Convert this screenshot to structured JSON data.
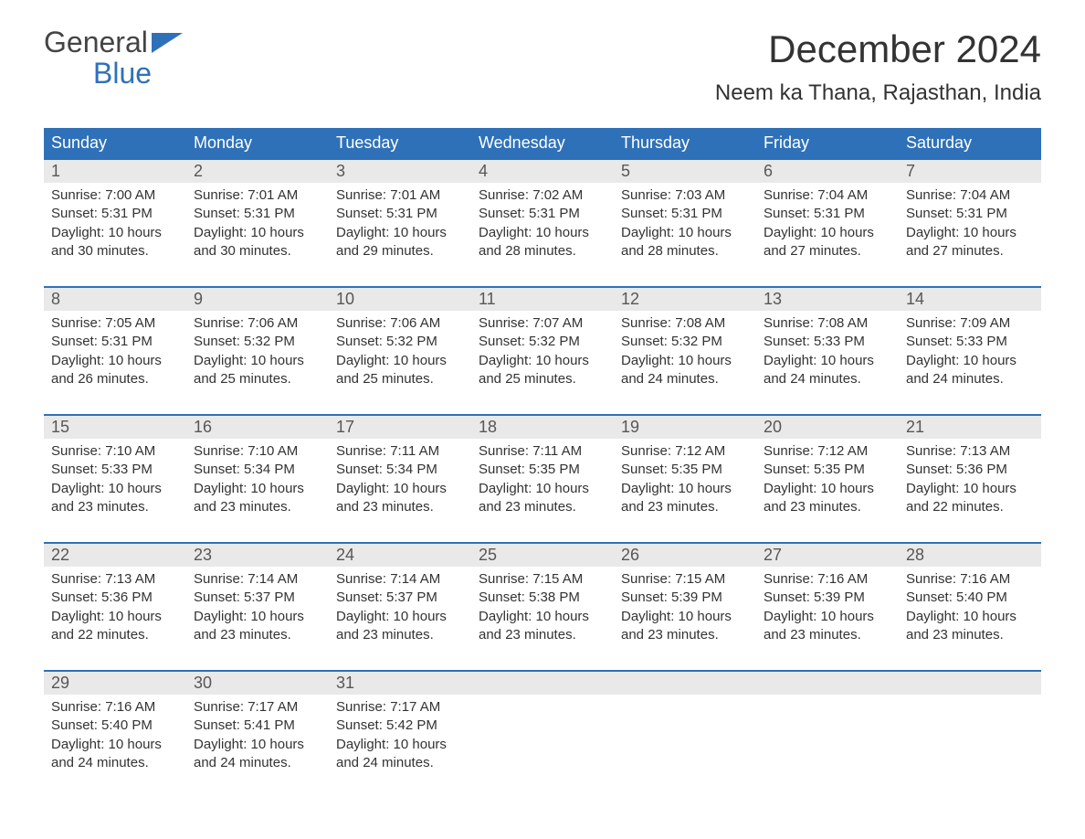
{
  "logo": {
    "top": "General",
    "bottom": "Blue"
  },
  "colors": {
    "brand_blue": "#2f71b8",
    "header_text": "#ffffff",
    "daynum_bg": "#e9e9e9",
    "daynum_text": "#575757",
    "body_text": "#333333",
    "page_bg": "#ffffff"
  },
  "typography": {
    "month_title_pt": 42,
    "location_pt": 24,
    "day_header_pt": 18,
    "daynum_pt": 18,
    "detail_pt": 15,
    "font_family": "Arial"
  },
  "month_title": "December 2024",
  "location": "Neem ka Thana, Rajasthan, India",
  "day_headers": [
    "Sunday",
    "Monday",
    "Tuesday",
    "Wednesday",
    "Thursday",
    "Friday",
    "Saturday"
  ],
  "labels": {
    "sunrise": "Sunrise:",
    "sunset": "Sunset:",
    "daylight_prefix": "Daylight:",
    "daylight_join": "and"
  },
  "weeks": [
    [
      {
        "n": "1",
        "sunrise": "7:00 AM",
        "sunset": "5:31 PM",
        "dl_h": "10 hours",
        "dl_m": "30 minutes."
      },
      {
        "n": "2",
        "sunrise": "7:01 AM",
        "sunset": "5:31 PM",
        "dl_h": "10 hours",
        "dl_m": "30 minutes."
      },
      {
        "n": "3",
        "sunrise": "7:01 AM",
        "sunset": "5:31 PM",
        "dl_h": "10 hours",
        "dl_m": "29 minutes."
      },
      {
        "n": "4",
        "sunrise": "7:02 AM",
        "sunset": "5:31 PM",
        "dl_h": "10 hours",
        "dl_m": "28 minutes."
      },
      {
        "n": "5",
        "sunrise": "7:03 AM",
        "sunset": "5:31 PM",
        "dl_h": "10 hours",
        "dl_m": "28 minutes."
      },
      {
        "n": "6",
        "sunrise": "7:04 AM",
        "sunset": "5:31 PM",
        "dl_h": "10 hours",
        "dl_m": "27 minutes."
      },
      {
        "n": "7",
        "sunrise": "7:04 AM",
        "sunset": "5:31 PM",
        "dl_h": "10 hours",
        "dl_m": "27 minutes."
      }
    ],
    [
      {
        "n": "8",
        "sunrise": "7:05 AM",
        "sunset": "5:31 PM",
        "dl_h": "10 hours",
        "dl_m": "26 minutes."
      },
      {
        "n": "9",
        "sunrise": "7:06 AM",
        "sunset": "5:32 PM",
        "dl_h": "10 hours",
        "dl_m": "25 minutes."
      },
      {
        "n": "10",
        "sunrise": "7:06 AM",
        "sunset": "5:32 PM",
        "dl_h": "10 hours",
        "dl_m": "25 minutes."
      },
      {
        "n": "11",
        "sunrise": "7:07 AM",
        "sunset": "5:32 PM",
        "dl_h": "10 hours",
        "dl_m": "25 minutes."
      },
      {
        "n": "12",
        "sunrise": "7:08 AM",
        "sunset": "5:32 PM",
        "dl_h": "10 hours",
        "dl_m": "24 minutes."
      },
      {
        "n": "13",
        "sunrise": "7:08 AM",
        "sunset": "5:33 PM",
        "dl_h": "10 hours",
        "dl_m": "24 minutes."
      },
      {
        "n": "14",
        "sunrise": "7:09 AM",
        "sunset": "5:33 PM",
        "dl_h": "10 hours",
        "dl_m": "24 minutes."
      }
    ],
    [
      {
        "n": "15",
        "sunrise": "7:10 AM",
        "sunset": "5:33 PM",
        "dl_h": "10 hours",
        "dl_m": "23 minutes."
      },
      {
        "n": "16",
        "sunrise": "7:10 AM",
        "sunset": "5:34 PM",
        "dl_h": "10 hours",
        "dl_m": "23 minutes."
      },
      {
        "n": "17",
        "sunrise": "7:11 AM",
        "sunset": "5:34 PM",
        "dl_h": "10 hours",
        "dl_m": "23 minutes."
      },
      {
        "n": "18",
        "sunrise": "7:11 AM",
        "sunset": "5:35 PM",
        "dl_h": "10 hours",
        "dl_m": "23 minutes."
      },
      {
        "n": "19",
        "sunrise": "7:12 AM",
        "sunset": "5:35 PM",
        "dl_h": "10 hours",
        "dl_m": "23 minutes."
      },
      {
        "n": "20",
        "sunrise": "7:12 AM",
        "sunset": "5:35 PM",
        "dl_h": "10 hours",
        "dl_m": "23 minutes."
      },
      {
        "n": "21",
        "sunrise": "7:13 AM",
        "sunset": "5:36 PM",
        "dl_h": "10 hours",
        "dl_m": "22 minutes."
      }
    ],
    [
      {
        "n": "22",
        "sunrise": "7:13 AM",
        "sunset": "5:36 PM",
        "dl_h": "10 hours",
        "dl_m": "22 minutes."
      },
      {
        "n": "23",
        "sunrise": "7:14 AM",
        "sunset": "5:37 PM",
        "dl_h": "10 hours",
        "dl_m": "23 minutes."
      },
      {
        "n": "24",
        "sunrise": "7:14 AM",
        "sunset": "5:37 PM",
        "dl_h": "10 hours",
        "dl_m": "23 minutes."
      },
      {
        "n": "25",
        "sunrise": "7:15 AM",
        "sunset": "5:38 PM",
        "dl_h": "10 hours",
        "dl_m": "23 minutes."
      },
      {
        "n": "26",
        "sunrise": "7:15 AM",
        "sunset": "5:39 PM",
        "dl_h": "10 hours",
        "dl_m": "23 minutes."
      },
      {
        "n": "27",
        "sunrise": "7:16 AM",
        "sunset": "5:39 PM",
        "dl_h": "10 hours",
        "dl_m": "23 minutes."
      },
      {
        "n": "28",
        "sunrise": "7:16 AM",
        "sunset": "5:40 PM",
        "dl_h": "10 hours",
        "dl_m": "23 minutes."
      }
    ],
    [
      {
        "n": "29",
        "sunrise": "7:16 AM",
        "sunset": "5:40 PM",
        "dl_h": "10 hours",
        "dl_m": "24 minutes."
      },
      {
        "n": "30",
        "sunrise": "7:17 AM",
        "sunset": "5:41 PM",
        "dl_h": "10 hours",
        "dl_m": "24 minutes."
      },
      {
        "n": "31",
        "sunrise": "7:17 AM",
        "sunset": "5:42 PM",
        "dl_h": "10 hours",
        "dl_m": "24 minutes."
      },
      null,
      null,
      null,
      null
    ]
  ]
}
